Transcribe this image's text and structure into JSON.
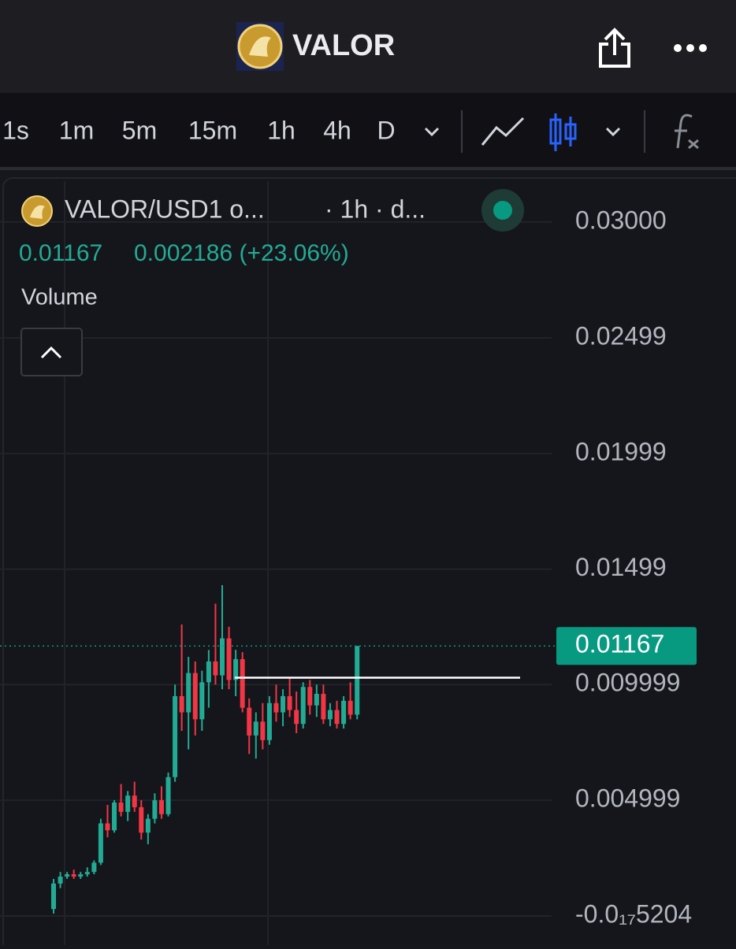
{
  "header": {
    "title": "VALOR"
  },
  "toolbar": {
    "intervals": [
      "1s",
      "1m",
      "5m",
      "15m",
      "1h",
      "4h",
      "D"
    ],
    "active_index": 4,
    "active_color": "#2962ff"
  },
  "chart_data": {
    "type": "candlestick",
    "title": "VALOR/USD1 o...",
    "subtitle": "· 1h · d...",
    "last_price": 0.01167,
    "change_label": "0.002186 (+23.06%)",
    "volume_label": "Volume",
    "up_color": "#22ab94",
    "down_color": "#f23645",
    "price_tag_color": "#089981",
    "drawn_line": 0.0103,
    "grid": true,
    "ylim": [
      -0.00126,
      0.0319
    ],
    "yticks": [
      {
        "value": -5.204e-18,
        "label": "-0.0₁₇5204"
      },
      0.004999,
      0.009999,
      0.01499,
      0.01999,
      0.02499,
      {
        "value": 0.03,
        "label": "0.03000"
      }
    ],
    "ohlc": [
      [
        0.0003,
        0.0016,
        0.0001,
        0.0014
      ],
      [
        0.0014,
        0.0019,
        0.0012,
        0.0017
      ],
      [
        0.0017,
        0.0019,
        0.0016,
        0.0018
      ],
      [
        0.0018,
        0.002,
        0.0016,
        0.0017
      ],
      [
        0.0017,
        0.0019,
        0.0016,
        0.0018
      ],
      [
        0.0018,
        0.0021,
        0.0017,
        0.0019
      ],
      [
        0.0019,
        0.0024,
        0.0018,
        0.0023
      ],
      [
        0.0023,
        0.0042,
        0.0022,
        0.004
      ],
      [
        0.004,
        0.0048,
        0.0034,
        0.0037
      ],
      [
        0.0037,
        0.005,
        0.0036,
        0.0049
      ],
      [
        0.0049,
        0.0057,
        0.0043,
        0.0045
      ],
      [
        0.0045,
        0.0054,
        0.0041,
        0.0052
      ],
      [
        0.0052,
        0.0058,
        0.0045,
        0.0047
      ],
      [
        0.0047,
        0.005,
        0.0033,
        0.0036
      ],
      [
        0.0036,
        0.0044,
        0.0031,
        0.0042
      ],
      [
        0.0042,
        0.0053,
        0.004,
        0.005
      ],
      [
        0.005,
        0.0056,
        0.0042,
        0.0044
      ],
      [
        0.0044,
        0.0062,
        0.0043,
        0.006
      ],
      [
        0.006,
        0.01,
        0.0058,
        0.0095
      ],
      [
        0.0095,
        0.0126,
        0.008,
        0.0088
      ],
      [
        0.0088,
        0.0112,
        0.0072,
        0.0105
      ],
      [
        0.0105,
        0.011,
        0.0078,
        0.0085
      ],
      [
        0.0085,
        0.0106,
        0.008,
        0.0101
      ],
      [
        0.0101,
        0.0115,
        0.009,
        0.011
      ],
      [
        0.011,
        0.0135,
        0.01,
        0.0104
      ],
      [
        0.0104,
        0.0143,
        0.0098,
        0.012
      ],
      [
        0.012,
        0.0125,
        0.0098,
        0.0102
      ],
      [
        0.0102,
        0.0115,
        0.0095,
        0.0111
      ],
      [
        0.0111,
        0.0114,
        0.0088,
        0.009
      ],
      [
        0.009,
        0.0094,
        0.007,
        0.0078
      ],
      [
        0.0078,
        0.0088,
        0.0068,
        0.0084
      ],
      [
        0.0084,
        0.0092,
        0.0072,
        0.0076
      ],
      [
        0.0076,
        0.0095,
        0.0074,
        0.0092
      ],
      [
        0.0092,
        0.01,
        0.0084,
        0.0088
      ],
      [
        0.0088,
        0.0098,
        0.0082,
        0.0095
      ],
      [
        0.0095,
        0.0103,
        0.0086,
        0.0089
      ],
      [
        0.0089,
        0.0097,
        0.0079,
        0.0083
      ],
      [
        0.0083,
        0.0101,
        0.0081,
        0.0099
      ],
      [
        0.0099,
        0.0102,
        0.0087,
        0.0091
      ],
      [
        0.0091,
        0.01,
        0.0086,
        0.0096
      ],
      [
        0.0096,
        0.01,
        0.0083,
        0.0085
      ],
      [
        0.0085,
        0.0092,
        0.0082,
        0.0089
      ],
      [
        0.0089,
        0.0093,
        0.0081,
        0.0083
      ],
      [
        0.0083,
        0.0095,
        0.0081,
        0.0093
      ],
      [
        0.0093,
        0.0101,
        0.0085,
        0.0087
      ],
      [
        0.0087,
        0.01167,
        0.0085,
        0.01167
      ]
    ]
  }
}
